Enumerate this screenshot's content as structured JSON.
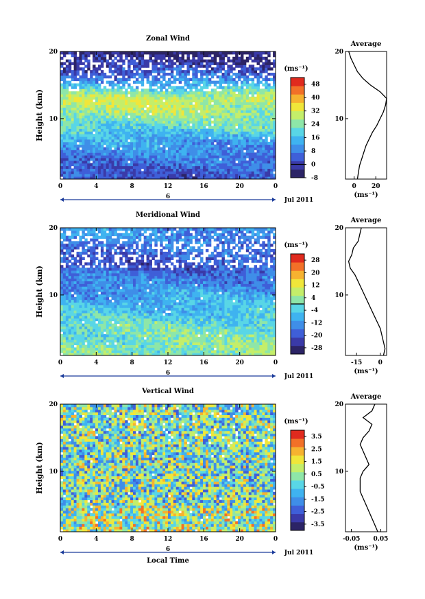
{
  "figure": {
    "xlabel": "Local Time",
    "date_label": "Jul 2011",
    "day_label": "6",
    "unit_label": "(ms⁻¹)",
    "avg_title": "Average",
    "ylabel": "Height (km)"
  },
  "chart_data": [
    {
      "type": "heatmap",
      "title": "Zonal Wind",
      "ylabel": "Height (km)",
      "xlabel": "",
      "x_ticks": [
        "0",
        "4",
        "8",
        "12",
        "16",
        "20",
        "0"
      ],
      "y_ticks": [
        "10",
        "20"
      ],
      "xlim": [
        0,
        24
      ],
      "ylim": [
        1,
        20
      ],
      "colorbar": {
        "unit": "(ms⁻¹)",
        "ticks": [
          "48",
          "40",
          "32",
          "24",
          "16",
          "8",
          "0",
          "-8"
        ],
        "range": [
          -8,
          52
        ]
      },
      "profile_range": [
        -8,
        52
      ],
      "contour_value": 0,
      "average": {
        "title": "Average",
        "x_ticks": [
          "0",
          "20"
        ],
        "xlim": [
          -8,
          30
        ],
        "xlabel": "(ms⁻¹)",
        "height": [
          1,
          2,
          3,
          4,
          5,
          6,
          7,
          8,
          9,
          10,
          11,
          12,
          13,
          14,
          15,
          16,
          17,
          18,
          19,
          20
        ],
        "value": [
          3,
          4,
          5,
          7,
          9,
          11,
          14,
          17,
          21,
          24,
          27,
          29,
          30,
          24,
          15,
          8,
          3,
          0,
          -3,
          -5
        ]
      }
    },
    {
      "type": "heatmap",
      "title": "Meridional Wind",
      "ylabel": "Height (km)",
      "xlabel": "",
      "x_ticks": [
        "0",
        "4",
        "8",
        "12",
        "16",
        "20",
        "0"
      ],
      "y_ticks": [
        "10",
        "20"
      ],
      "xlim": [
        0,
        24
      ],
      "ylim": [
        1,
        20
      ],
      "colorbar": {
        "unit": "(ms⁻¹)",
        "ticks": [
          "28",
          "20",
          "12",
          "4",
          "-4",
          "-12",
          "-20",
          "-28"
        ],
        "range": [
          -32,
          32
        ]
      },
      "profile_range": [
        -32,
        32
      ],
      "contour_value": 0,
      "average": {
        "title": "Average",
        "x_ticks": [
          "-15",
          "0"
        ],
        "xlim": [
          -22,
          4
        ],
        "xlabel": "(ms⁻¹)",
        "height": [
          1,
          2,
          3,
          4,
          5,
          6,
          7,
          8,
          9,
          10,
          11,
          12,
          13,
          14,
          15,
          16,
          17,
          18,
          19,
          20
        ],
        "value": [
          2,
          3,
          2,
          1,
          0,
          -2,
          -4,
          -6,
          -8,
          -10,
          -12,
          -14,
          -16,
          -19,
          -20,
          -18,
          -17,
          -14,
          -13,
          -12
        ]
      }
    },
    {
      "type": "heatmap",
      "title": "Vertical Wind",
      "ylabel": "Height (km)",
      "xlabel": "Local Time",
      "x_ticks": [
        "0",
        "4",
        "8",
        "12",
        "16",
        "20",
        "0"
      ],
      "y_ticks": [
        "10",
        "20"
      ],
      "xlim": [
        0,
        24
      ],
      "ylim": [
        1,
        20
      ],
      "colorbar": {
        "unit": "(ms⁻¹)",
        "ticks": [
          "3.5",
          "2.5",
          "1.5",
          "0.5",
          "-0.5",
          "-1.5",
          "-2.5",
          "-3.5"
        ],
        "range": [
          -4,
          4
        ]
      },
      "profile_range": [
        -0.3,
        0.3
      ],
      "contour_value": null,
      "average": {
        "title": "Average",
        "x_ticks": [
          "-0.05",
          "0.05"
        ],
        "xlim": [
          -0.07,
          0.07
        ],
        "xlabel": "(ms⁻¹)",
        "height": [
          1,
          2,
          3,
          4,
          5,
          6,
          7,
          8,
          9,
          10,
          11,
          12,
          13,
          14,
          15,
          16,
          17,
          18,
          19,
          20
        ],
        "value": [
          0.04,
          0.03,
          0.02,
          0.01,
          0.0,
          -0.01,
          -0.02,
          -0.02,
          -0.02,
          -0.01,
          0.01,
          0.0,
          -0.01,
          -0.02,
          -0.01,
          0.01,
          0.02,
          -0.01,
          0.02,
          0.03
        ]
      }
    }
  ]
}
